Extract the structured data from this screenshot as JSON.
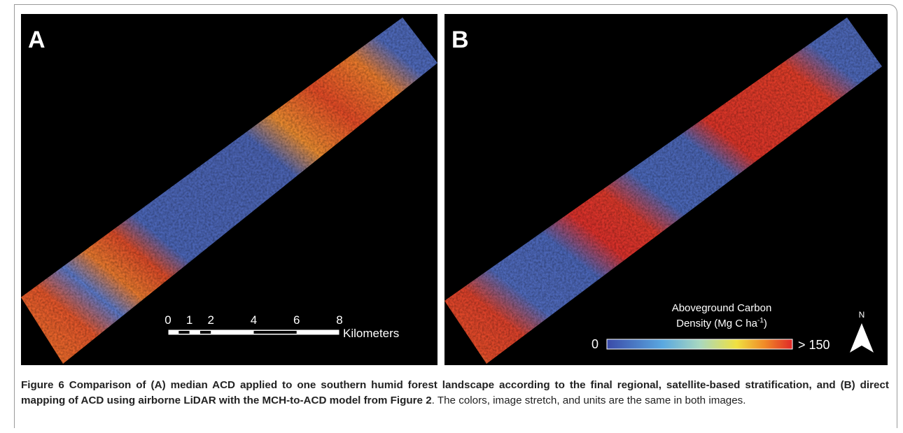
{
  "panels": [
    {
      "label": "A",
      "scale_bar": {
        "ticks": [
          0,
          1,
          2,
          4,
          6,
          8
        ],
        "unit": "Kilometers"
      }
    },
    {
      "label": "B",
      "legend": {
        "title_line1": "Aboveground Carbon",
        "title_line2": "Density (Mg C ha",
        "superscript": "-1",
        "title_close": ")",
        "min": "0",
        "max": "> 150",
        "north": "N"
      }
    }
  ],
  "caption": {
    "bold": "Figure 6 Comparison of (A) median ACD applied to one southern humid forest landscape according to the final regional, satellite-based stratification, and (B) direct mapping of ACD using airborne LiDAR with the MCH-to-ACD model from Figure 2",
    "rest": ". The colors, image stretch, and units are the same in both images."
  }
}
